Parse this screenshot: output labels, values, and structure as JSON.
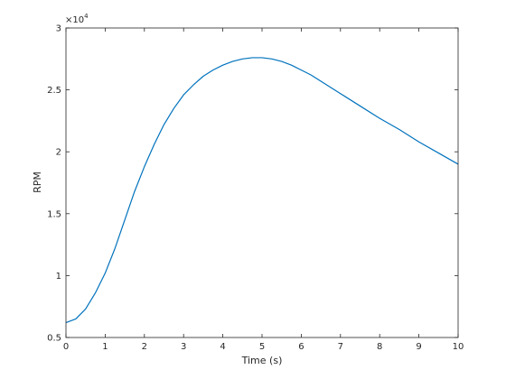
{
  "chart_data": {
    "type": "line",
    "title": "",
    "xlabel": "Time (s)",
    "ylabel": "RPM",
    "xlim": [
      0,
      10
    ],
    "ylim": [
      5000,
      30000
    ],
    "y_exponent_label": "×10",
    "y_exponent_power": "4",
    "grid": false,
    "x_ticks": [
      0,
      1,
      2,
      3,
      4,
      5,
      6,
      7,
      8,
      9,
      10
    ],
    "x_tick_labels": [
      "0",
      "1",
      "2",
      "3",
      "4",
      "5",
      "6",
      "7",
      "8",
      "9",
      "10"
    ],
    "y_ticks": [
      5000,
      10000,
      15000,
      20000,
      25000,
      30000
    ],
    "y_tick_labels": [
      "0.5",
      "1",
      "1.5",
      "2",
      "2.5",
      "3"
    ],
    "series": [
      {
        "color": "#0072bd",
        "x": [
          0,
          0.25,
          0.5,
          0.75,
          1,
          1.25,
          1.5,
          1.75,
          2,
          2.25,
          2.5,
          2.75,
          3,
          3.25,
          3.5,
          3.75,
          4,
          4.25,
          4.5,
          4.75,
          5,
          5.25,
          5.5,
          5.75,
          6,
          6.25,
          6.5,
          6.75,
          7,
          7.5,
          8,
          8.5,
          9,
          9.5,
          10
        ],
        "y": [
          6200,
          6500,
          7300,
          8600,
          10200,
          12200,
          14500,
          16800,
          18800,
          20600,
          22200,
          23500,
          24600,
          25400,
          26100,
          26600,
          27000,
          27300,
          27500,
          27600,
          27600,
          27500,
          27300,
          27000,
          26600,
          26200,
          25700,
          25200,
          24700,
          23700,
          22700,
          21800,
          20800,
          19900,
          19000
        ]
      }
    ]
  }
}
